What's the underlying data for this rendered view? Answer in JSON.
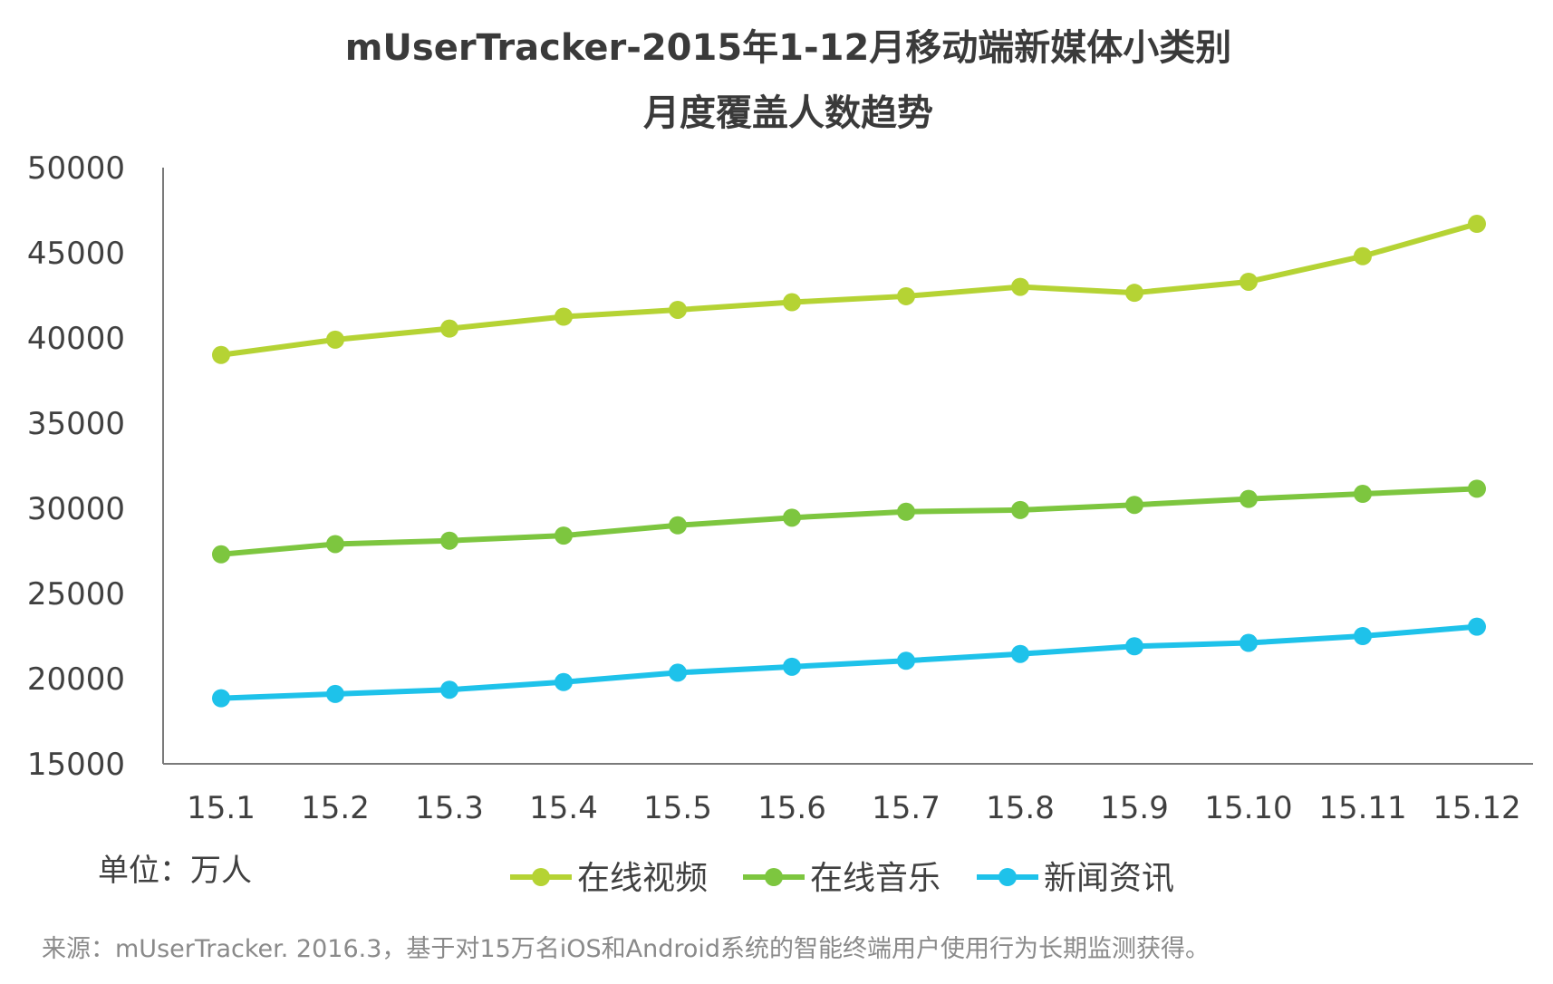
{
  "chart_data": {
    "type": "line",
    "title": [
      "mUserTracker-2015年1-12月移动端新媒体小类别",
      "月度覆盖人数趋势"
    ],
    "xlabel": "",
    "ylabel": "",
    "unit_label": "单位：万人",
    "source": "来源：mUserTracker. 2016.3，基于对15万名iOS和Android系统的智能终端用户使用行为长期监测获得。",
    "ylim": [
      15000,
      50000
    ],
    "yticks": [
      50000,
      45000,
      40000,
      35000,
      30000,
      25000,
      20000,
      15000
    ],
    "grid": false,
    "legend_position": "bottom",
    "categories": [
      "15.1",
      "15.2",
      "15.3",
      "15.4",
      "15.5",
      "15.6",
      "15.7",
      "15.8",
      "15.9",
      "15.10",
      "15.11",
      "15.12"
    ],
    "series": [
      {
        "name": "在线视频",
        "color": "#b5d334",
        "values": [
          39000,
          39900,
          40550,
          41250,
          41650,
          42100,
          42450,
          43000,
          42650,
          43300,
          44800,
          46700
        ]
      },
      {
        "name": "在线音乐",
        "color": "#7dc63f",
        "values": [
          27300,
          27900,
          28100,
          28400,
          29000,
          29450,
          29800,
          29900,
          30200,
          30550,
          30850,
          31150
        ]
      },
      {
        "name": "新闻资讯",
        "color": "#1ec2ea",
        "values": [
          18850,
          19100,
          19350,
          19800,
          20350,
          20700,
          21050,
          21450,
          21900,
          22100,
          22500,
          23050
        ]
      }
    ]
  }
}
